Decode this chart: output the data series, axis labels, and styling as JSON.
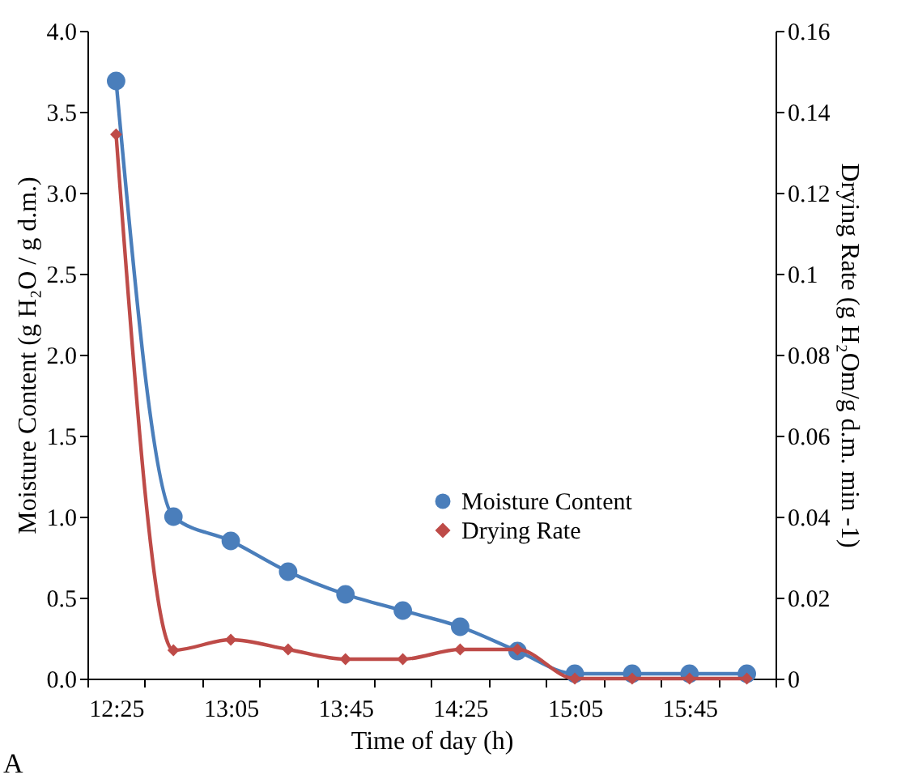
{
  "chart_data": {
    "type": "line",
    "xlabel": "Time of day (h)",
    "ylabel": "Moisture Content (g H₂O / g d.m.)",
    "y2label": "Drying Rate (g H₂Om/g d.m. min -1)",
    "categories": [
      "12:25",
      null,
      "13:05",
      null,
      "13:45",
      null,
      "14:25",
      null,
      "15:05",
      null,
      "15:45",
      null
    ],
    "series": [
      {
        "name": "Moisture Content",
        "color": "#4a7ebb",
        "marker": "circle",
        "values": [
          3.69,
          1.0,
          0.85,
          0.66,
          0.52,
          0.42,
          0.32,
          0.17,
          0.03,
          0.03,
          0.03,
          0.03
        ]
      },
      {
        "name": "Drying Rate",
        "color": "#be4b48",
        "marker": "diamond",
        "axis": "y2",
        "values": [
          0.1344,
          0.007,
          0.0096,
          0.0072,
          0.0048,
          0.0048,
          0.0072,
          0.0072,
          0,
          0,
          0,
          0
        ]
      }
    ],
    "ylim": [
      0,
      4
    ],
    "yticks": [
      {
        "value": 0,
        "label": "0.0"
      },
      {
        "value": 0.5,
        "label": "0.5"
      },
      {
        "value": 1,
        "label": "1.0"
      },
      {
        "value": 1.5,
        "label": "1.5"
      },
      {
        "value": 2,
        "label": "2.0"
      },
      {
        "value": 2.5,
        "label": "2.5"
      },
      {
        "value": 3,
        "label": "3.0"
      },
      {
        "value": 3.5,
        "label": "3.5"
      },
      {
        "value": 4,
        "label": "4.0"
      }
    ],
    "y2lim": [
      0,
      0.16
    ],
    "y2ticks": [
      0,
      0.02,
      0.04,
      0.06,
      0.08,
      0.1,
      0.12,
      0.14,
      0.16
    ],
    "legend": "right",
    "grid": false,
    "line_style": "solid",
    "annotations": [
      "A"
    ]
  }
}
